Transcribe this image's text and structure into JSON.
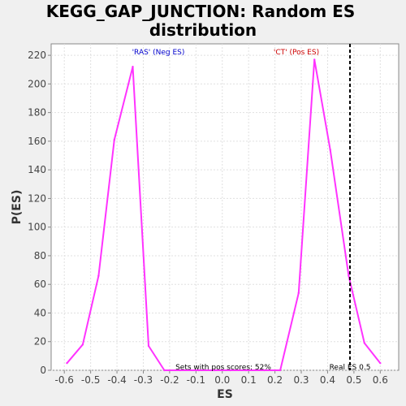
{
  "chart_data": {
    "type": "line",
    "title_line1": "KEGG_GAP_JUNCTION: Random ES",
    "title_line2": "distribution",
    "xlabel": "ES",
    "ylabel": "P(ES)",
    "xlim": [
      -0.65,
      0.67
    ],
    "ylim": [
      0,
      228
    ],
    "x_ticks": [
      "-0.6",
      "-0.5",
      "-0.4",
      "-0.3",
      "-0.2",
      "-0.1",
      "0.0",
      "0.1",
      "0.2",
      "0.3",
      "0.4",
      "0.5",
      "0.6"
    ],
    "y_ticks": [
      "0",
      "20",
      "40",
      "60",
      "80",
      "100",
      "120",
      "140",
      "160",
      "180",
      "200",
      "220"
    ],
    "grid": true,
    "series": [
      {
        "color": "#ff33ff",
        "x": [
          -0.59,
          -0.53,
          -0.47,
          -0.41,
          -0.34,
          -0.28,
          -0.22,
          -0.16,
          -0.09,
          -0.03,
          0.03,
          0.09,
          0.16,
          0.22,
          0.29,
          0.35,
          0.41,
          0.48,
          0.54,
          0.6
        ],
        "y": [
          5,
          18,
          66,
          161,
          212,
          17,
          0,
          0,
          0,
          0,
          0,
          0,
          0,
          0,
          54,
          217,
          154,
          66,
          19,
          5
        ]
      }
    ],
    "real_es": 0.485,
    "annotations": {
      "neg_label": "'RAS' (Neg ES)",
      "neg_color": "#0000cc",
      "pos_label": "'CT' (Pos ES)",
      "pos_color": "#cc0000",
      "pos_scores": "Sets with pos scores: 52%",
      "real_es_label": "Real ES 0.5"
    }
  }
}
